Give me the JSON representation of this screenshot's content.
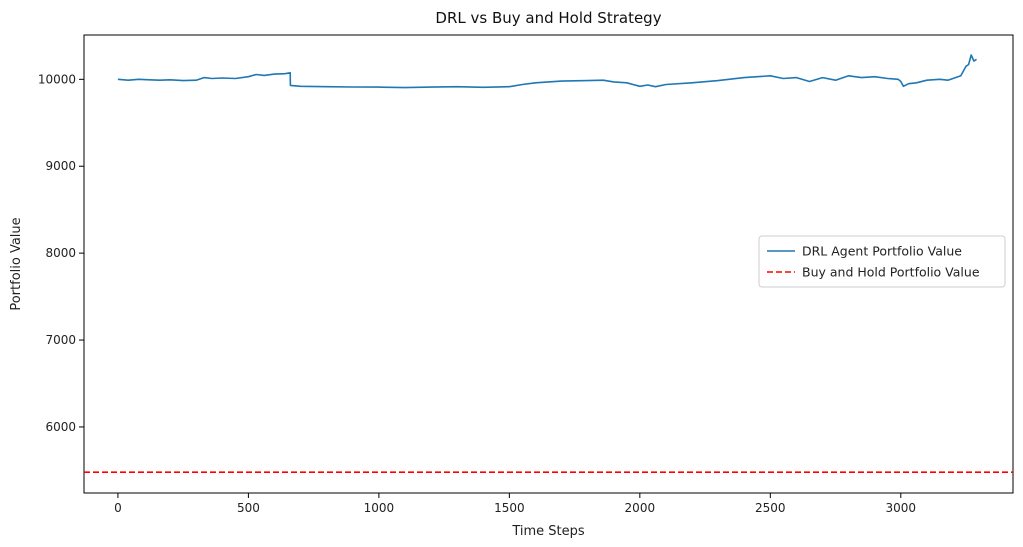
{
  "chart_data": {
    "type": "line",
    "title": "DRL vs Buy and Hold Strategy",
    "xlabel": "Time Steps",
    "ylabel": "Portfolio Value",
    "xlim": [
      -130,
      3430
    ],
    "ylim": [
      5240,
      10510
    ],
    "x_ticks": [
      0,
      500,
      1000,
      1500,
      2000,
      2500,
      3000
    ],
    "y_ticks": [
      6000,
      7000,
      8000,
      9000,
      10000
    ],
    "grid": false,
    "legend_position": "center-right",
    "series": [
      {
        "name": "DRL Agent Portfolio Value",
        "color": "#1f77b4",
        "style": "solid",
        "x": [
          0,
          40,
          80,
          120,
          160,
          200,
          250,
          300,
          330,
          360,
          400,
          450,
          500,
          530,
          560,
          600,
          640,
          660,
          661,
          700,
          800,
          900,
          1000,
          1100,
          1200,
          1300,
          1400,
          1500,
          1550,
          1600,
          1700,
          1800,
          1860,
          1900,
          1950,
          2000,
          2030,
          2060,
          2100,
          2200,
          2300,
          2400,
          2450,
          2500,
          2550,
          2600,
          2650,
          2700,
          2750,
          2800,
          2850,
          2900,
          2950,
          2990,
          3000,
          3010,
          3030,
          3060,
          3100,
          3150,
          3180,
          3200,
          3230,
          3250,
          3260,
          3270,
          3280,
          3290
        ],
        "y": [
          10000,
          9990,
          10000,
          9995,
          9990,
          9995,
          9985,
          9990,
          10020,
          10010,
          10015,
          10010,
          10030,
          10055,
          10045,
          10060,
          10065,
          10075,
          9930,
          9920,
          9915,
          9912,
          9910,
          9905,
          9910,
          9915,
          9908,
          9915,
          9940,
          9960,
          9980,
          9985,
          9990,
          9970,
          9960,
          9920,
          9935,
          9915,
          9940,
          9960,
          9985,
          10020,
          10030,
          10040,
          10010,
          10020,
          9975,
          10020,
          9990,
          10040,
          10020,
          10030,
          10010,
          10000,
          9975,
          9920,
          9950,
          9960,
          9990,
          10000,
          9990,
          10010,
          10040,
          10150,
          10170,
          10280,
          10210,
          10230
        ]
      },
      {
        "name": "Buy and Hold Portfolio Value",
        "color": "#ff0000",
        "style": "dashed",
        "y_constant": 5480
      }
    ]
  }
}
